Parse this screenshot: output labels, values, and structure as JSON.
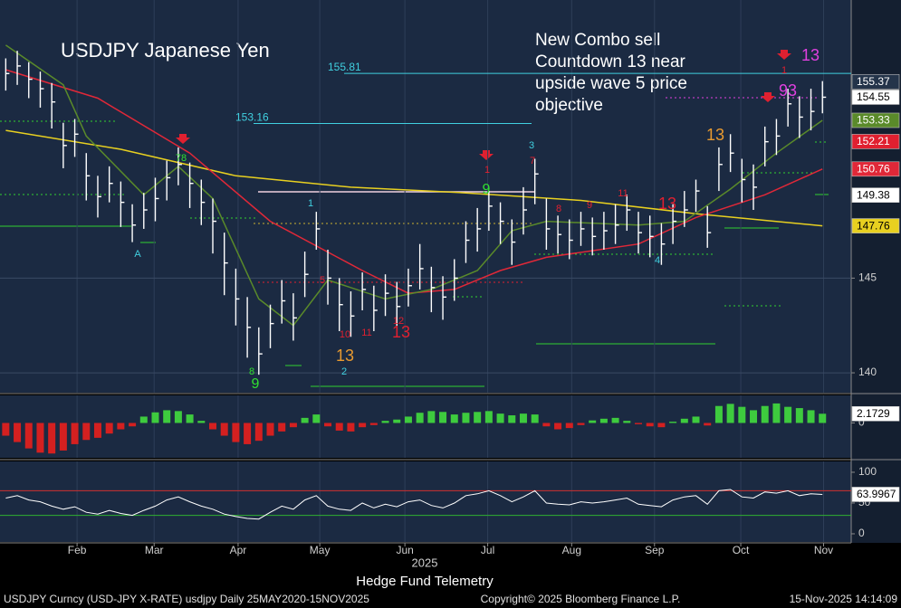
{
  "chart_data": [
    {
      "type": "ohlc",
      "title": "USDJPY Japanese Yen",
      "color": "#ffffff",
      "ylim": [
        139.0,
        159.3
      ],
      "yticks": [
        140,
        145
      ],
      "grid": true,
      "high": [
        156.6,
        157.0,
        156.4,
        155.9,
        155.3,
        153.2,
        153.4,
        151.6,
        150.4,
        150.9,
        150.1,
        148.9,
        149.5,
        150.3,
        151.2,
        151.9,
        151.1,
        150.2,
        149.2,
        147.4,
        145.5,
        144.0,
        142.4,
        143.6,
        144.9,
        144.2,
        146.4,
        148.5,
        146.5,
        145.0,
        144.3,
        145.3,
        144.6,
        145.2,
        144.8,
        145.5,
        146.8,
        145.6,
        145.1,
        146.0,
        148.0,
        148.7,
        149.6,
        149.0,
        148.1,
        149.8,
        151.3,
        149.2,
        148.3,
        148.1,
        148.5,
        148.2,
        148.5,
        148.9,
        149.4,
        148.5,
        148.3,
        147.9,
        148.9,
        149.6,
        150.2,
        148.8,
        151.9,
        152.6,
        151.3,
        151.0,
        153.0,
        153.4,
        155.0,
        154.6,
        155.0,
        155.4
      ],
      "low": [
        154.9,
        155.2,
        154.5,
        154.0,
        152.9,
        150.8,
        151.4,
        149.1,
        148.2,
        149.0,
        147.7,
        146.9,
        147.6,
        148.0,
        149.1,
        149.9,
        148.7,
        147.8,
        146.3,
        144.1,
        142.5,
        140.8,
        139.9,
        141.3,
        142.6,
        141.7,
        144.0,
        146.5,
        143.6,
        142.2,
        141.9,
        143.3,
        142.2,
        143.0,
        142.4,
        143.5,
        144.4,
        143.2,
        142.8,
        143.8,
        145.8,
        146.4,
        147.5,
        146.8,
        145.7,
        147.3,
        148.9,
        146.5,
        146.3,
        146.0,
        146.7,
        146.2,
        146.5,
        146.8,
        147.5,
        146.3,
        146.1,
        145.7,
        146.8,
        147.7,
        148.5,
        146.6,
        149.6,
        150.6,
        149.0,
        148.6,
        150.9,
        151.5,
        153.0,
        152.4,
        152.8,
        153.7
      ],
      "close": [
        155.8,
        156.2,
        155.5,
        155.0,
        154.3,
        152.0,
        152.6,
        150.4,
        149.3,
        150.0,
        149.0,
        147.8,
        148.6,
        149.2,
        150.3,
        151.0,
        150.0,
        149.0,
        148.0,
        145.8,
        143.9,
        142.4,
        141.0,
        142.6,
        143.8,
        142.9,
        145.2,
        147.6,
        145.0,
        143.6,
        143.0,
        144.4,
        143.3,
        144.2,
        143.5,
        144.6,
        145.5,
        144.5,
        144.0,
        145.0,
        147.0,
        147.6,
        148.8,
        148.0,
        146.9,
        148.6,
        150.5,
        147.6,
        147.3,
        147.0,
        147.6,
        147.2,
        147.5,
        147.8,
        148.6,
        147.4,
        147.2,
        146.8,
        148.0,
        148.6,
        149.6,
        147.4,
        151.0,
        151.6,
        150.2,
        149.8,
        152.2,
        152.5,
        154.2,
        153.5,
        153.8,
        154.55
      ],
      "overlays": [
        {
          "color": "#e8d020",
          "x": [
            0,
            10,
            20,
            30,
            40,
            50,
            60,
            71
          ],
          "values": [
            152.8,
            151.8,
            150.4,
            149.8,
            149.5,
            149.1,
            148.4,
            147.76
          ],
          "box_text": "#000000"
        },
        {
          "color": "#e02838",
          "x": [
            0,
            8,
            16,
            23,
            31,
            35,
            39,
            43,
            47,
            55,
            60,
            66,
            71
          ],
          "values": [
            156.0,
            154.5,
            151.6,
            148.0,
            145.4,
            144.2,
            144.4,
            145.4,
            146.1,
            146.8,
            148.2,
            149.4,
            150.76
          ],
          "box_text": "#ffffff"
        },
        {
          "color": "#5a8a2a",
          "x": [
            0,
            5,
            7,
            12,
            15,
            18,
            22,
            25,
            28,
            33,
            37,
            41,
            44,
            47,
            55,
            59,
            63,
            67,
            71
          ],
          "values": [
            157.3,
            155.2,
            152.5,
            149.4,
            150.9,
            149.2,
            143.9,
            142.5,
            144.9,
            143.9,
            144.4,
            145.4,
            147.5,
            148.0,
            147.8,
            148.0,
            149.7,
            151.6,
            153.33
          ],
          "box_text": "#ffffff"
        }
      ],
      "levels": [
        {
          "value": 155.81,
          "color": "#40d0e0"
        },
        {
          "value": 153.16,
          "color": "#40d0e0"
        }
      ],
      "price_markers": [
        {
          "value": 155.37,
          "color": "#24344a",
          "text_color": "#ffffff"
        },
        {
          "value": 152.21,
          "color": "#e02030",
          "text_color": "#ffffff"
        },
        {
          "value": 149.38,
          "color": "#ffffff",
          "text_color": "#000000"
        }
      ],
      "annotation": [
        "New Combo sell",
        "Countdown 13 near",
        "upside wave 5 price",
        "objective"
      ],
      "td_counts": [
        {
          "text": "13",
          "color": "#e89a30"
        },
        {
          "text": "13",
          "color": "#e02030"
        },
        {
          "text": "13",
          "color": "#e89a30"
        },
        {
          "text": "13",
          "color": "#e02030"
        },
        {
          "text": "9",
          "color": "#30e030"
        },
        {
          "text": "9",
          "color": "#30e030"
        },
        {
          "text": "13",
          "color": "#e040e0"
        },
        {
          "text": "93",
          "color": "#e040e0"
        },
        {
          "text": "1",
          "color": "#e02030"
        },
        {
          "text": "3",
          "color": "#40d0e0"
        },
        {
          "text": "7",
          "color": "#e02030"
        },
        {
          "text": "1",
          "color": "#40d0e0"
        },
        {
          "text": "2",
          "color": "#40d0e0"
        },
        {
          "text": "A",
          "color": "#40d0e0"
        },
        {
          "text": "4",
          "color": "#40d0e0"
        },
        {
          "text": "8",
          "color": "#30e030"
        },
        {
          "text": "10",
          "color": "#e02030"
        },
        {
          "text": "11",
          "color": "#e02030"
        },
        {
          "text": "12",
          "color": "#e02030"
        },
        {
          "text": "11",
          "color": "#e02030"
        },
        {
          "text": "8",
          "color": "#e02030"
        },
        {
          "text": "9",
          "color": "#e02030"
        },
        {
          "text": "5",
          "color": "#e02030"
        },
        {
          "text": "1",
          "color": "#e02030"
        },
        {
          "text": "78",
          "color": "#30e030"
        }
      ]
    },
    {
      "type": "bar",
      "ylim": [
        -8,
        6.5
      ],
      "yticks": [
        0
      ],
      "color_up": "#3ecb3e",
      "color_down": "#d42020",
      "values": [
        -3,
        -4.5,
        -6,
        -7,
        -7.2,
        -6.5,
        -5,
        -4,
        -3.5,
        -2.5,
        -1.5,
        -0.8,
        1.5,
        2.5,
        3,
        2.8,
        2,
        0.5,
        -1.5,
        -3,
        -4.5,
        -5,
        -4.2,
        -3,
        -2,
        -1,
        1.2,
        2,
        -0.8,
        -1.8,
        -2,
        -1,
        -0.5,
        0.5,
        0.8,
        1.5,
        2.4,
        2.8,
        2.6,
        2,
        2.4,
        2.6,
        2.8,
        2.2,
        1.8,
        2.2,
        2,
        -0.8,
        -1.5,
        -1.2,
        -0.5,
        0.6,
        1,
        1.2,
        0.5,
        -0.3,
        -0.8,
        -1,
        0.3,
        1,
        1.5,
        -0.6,
        4,
        4.5,
        3.8,
        3,
        4,
        4.6,
        3.8,
        3.5,
        3,
        2.1729
      ]
    },
    {
      "type": "line",
      "ylim": [
        -11.8,
        117.6
      ],
      "yticks": [
        0,
        50,
        100
      ],
      "color": "#ffffff",
      "bands": [
        {
          "value": 70,
          "color": "#d03030"
        },
        {
          "value": 30,
          "color": "#30b030"
        }
      ],
      "values": [
        58,
        62,
        55,
        52,
        45,
        40,
        44,
        35,
        32,
        38,
        33,
        30,
        38,
        45,
        55,
        60,
        52,
        45,
        40,
        32,
        28,
        25,
        24,
        35,
        45,
        40,
        55,
        62,
        45,
        40,
        38,
        50,
        42,
        48,
        44,
        52,
        55,
        46,
        42,
        50,
        62,
        65,
        70,
        62,
        52,
        60,
        70,
        50,
        48,
        47,
        52,
        50,
        52,
        55,
        58,
        48,
        46,
        44,
        55,
        60,
        62,
        48,
        70,
        72,
        60,
        58,
        68,
        66,
        70,
        62,
        65,
        63.9967
      ],
      "xlim": [
        -0.5,
        73.5
      ],
      "xticks": [
        {
          "value": 6.2,
          "label": "Feb"
        },
        {
          "value": 12.9,
          "label": "Mar"
        },
        {
          "value": 20.2,
          "label": "Apr"
        },
        {
          "value": 27.3,
          "label": "May"
        },
        {
          "value": 34.7,
          "label": "Jun"
        },
        {
          "value": 41.9,
          "label": "Jul"
        },
        {
          "value": 49.2,
          "label": "Aug"
        },
        {
          "value": 56.4,
          "label": "Sep"
        },
        {
          "value": 63.9,
          "label": "Oct"
        },
        {
          "value": 71.1,
          "label": "Nov"
        }
      ],
      "xlabel": "2025"
    }
  ],
  "caption": "Hedge Fund Telemetry",
  "footer": {
    "left": "USDJPY Curncy (USD-JPY X-RATE) usdjpy Daily 25MAY2020-15NOV2025",
    "center": "Copyright© 2025 Bloomberg Finance L.P.",
    "right": "15-Nov-2025 14:14:09"
  }
}
